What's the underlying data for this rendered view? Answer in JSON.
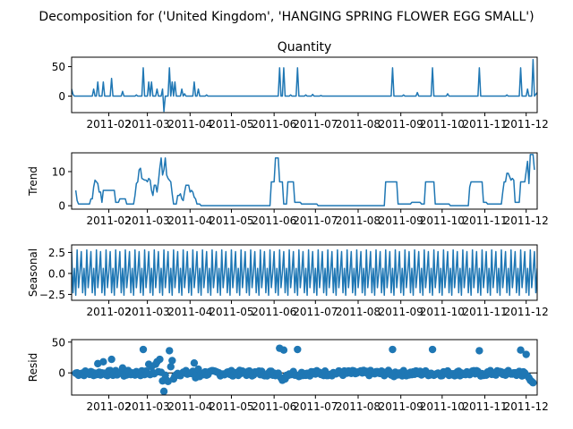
{
  "figure": {
    "suptitle": "Decomposition for ('United Kingdom', 'HANGING SPRING FLOWER EGG SMALL')",
    "title": "Quantity"
  },
  "chart_data": [
    {
      "type": "line",
      "name": "observed",
      "ylabel": "",
      "title": "Quantity",
      "ylim": [
        -28,
        66
      ],
      "yticks": [
        0,
        50
      ],
      "xlim": [
        "2011-01-05",
        "2011-12-09"
      ],
      "xticks": [
        "2011-02",
        "2011-03",
        "2011-04",
        "2011-05",
        "2011-06",
        "2011-07",
        "2011-08",
        "2011-09",
        "2011-10",
        "2011-11",
        "2011-12"
      ],
      "points": [
        [
          "2011-01-05",
          12
        ],
        [
          "2011-01-06",
          3
        ],
        [
          "2011-01-07",
          0
        ],
        [
          "2011-01-20",
          0
        ],
        [
          "2011-01-21",
          12
        ],
        [
          "2011-01-22",
          0
        ],
        [
          "2011-01-23",
          0
        ],
        [
          "2011-01-24",
          24
        ],
        [
          "2011-01-25",
          0
        ],
        [
          "2011-01-27",
          0
        ],
        [
          "2011-01-28",
          24
        ],
        [
          "2011-01-29",
          0
        ],
        [
          "2011-02-02",
          0
        ],
        [
          "2011-02-03",
          30
        ],
        [
          "2011-02-04",
          0
        ],
        [
          "2011-02-10",
          0
        ],
        [
          "2011-02-11",
          8
        ],
        [
          "2011-02-12",
          0
        ],
        [
          "2011-02-20",
          0
        ],
        [
          "2011-02-21",
          2
        ],
        [
          "2011-02-22",
          0
        ],
        [
          "2011-02-25",
          0
        ],
        [
          "2011-02-26",
          48
        ],
        [
          "2011-02-27",
          0
        ],
        [
          "2011-03-01",
          0
        ],
        [
          "2011-03-02",
          24
        ],
        [
          "2011-03-03",
          0
        ],
        [
          "2011-03-04",
          24
        ],
        [
          "2011-03-05",
          0
        ],
        [
          "2011-03-07",
          0
        ],
        [
          "2011-03-08",
          12
        ],
        [
          "2011-03-09",
          0
        ],
        [
          "2011-03-11",
          0
        ],
        [
          "2011-03-12",
          12
        ],
        [
          "2011-03-13",
          -26
        ],
        [
          "2011-03-14",
          0
        ],
        [
          "2011-03-16",
          0
        ],
        [
          "2011-03-17",
          48
        ],
        [
          "2011-03-18",
          0
        ],
        [
          "2011-03-19",
          24
        ],
        [
          "2011-03-20",
          0
        ],
        [
          "2011-03-21",
          24
        ],
        [
          "2011-03-22",
          0
        ],
        [
          "2011-03-25",
          0
        ],
        [
          "2011-03-26",
          12
        ],
        [
          "2011-03-27",
          0
        ],
        [
          "2011-03-28",
          4
        ],
        [
          "2011-03-29",
          0
        ],
        [
          "2011-04-03",
          0
        ],
        [
          "2011-04-04",
          24
        ],
        [
          "2011-04-05",
          0
        ],
        [
          "2011-04-06",
          0
        ],
        [
          "2011-04-07",
          12
        ],
        [
          "2011-04-08",
          0
        ],
        [
          "2011-04-12",
          0
        ],
        [
          "2011-04-13",
          2
        ],
        [
          "2011-04-14",
          0
        ],
        [
          "2011-06-04",
          0
        ],
        [
          "2011-06-05",
          48
        ],
        [
          "2011-06-06",
          0
        ],
        [
          "2011-06-07",
          0
        ],
        [
          "2011-06-08",
          48
        ],
        [
          "2011-06-09",
          0
        ],
        [
          "2011-06-12",
          0
        ],
        [
          "2011-06-13",
          2
        ],
        [
          "2011-06-14",
          0
        ],
        [
          "2011-06-17",
          0
        ],
        [
          "2011-06-18",
          48
        ],
        [
          "2011-06-19",
          0
        ],
        [
          "2011-06-23",
          0
        ],
        [
          "2011-06-24",
          2
        ],
        [
          "2011-06-25",
          0
        ],
        [
          "2011-06-28",
          0
        ],
        [
          "2011-06-29",
          3
        ],
        [
          "2011-06-30",
          0
        ],
        [
          "2011-07-04",
          0
        ],
        [
          "2011-07-05",
          1
        ],
        [
          "2011-07-06",
          0
        ],
        [
          "2011-08-25",
          0
        ],
        [
          "2011-08-26",
          48
        ],
        [
          "2011-08-27",
          0
        ],
        [
          "2011-09-02",
          0
        ],
        [
          "2011-09-03",
          2
        ],
        [
          "2011-09-04",
          0
        ],
        [
          "2011-09-12",
          0
        ],
        [
          "2011-09-13",
          6
        ],
        [
          "2011-09-14",
          0
        ],
        [
          "2011-09-23",
          0
        ],
        [
          "2011-09-24",
          48
        ],
        [
          "2011-09-25",
          0
        ],
        [
          "2011-10-04",
          0
        ],
        [
          "2011-10-05",
          4
        ],
        [
          "2011-10-06",
          0
        ],
        [
          "2011-10-27",
          0
        ],
        [
          "2011-10-28",
          48
        ],
        [
          "2011-10-29",
          0
        ],
        [
          "2011-11-16",
          0
        ],
        [
          "2011-11-17",
          2
        ],
        [
          "2011-11-18",
          0
        ],
        [
          "2011-11-26",
          0
        ],
        [
          "2011-11-27",
          48
        ],
        [
          "2011-11-28",
          0
        ],
        [
          "2011-12-01",
          0
        ],
        [
          "2011-12-02",
          12
        ],
        [
          "2011-12-03",
          0
        ],
        [
          "2011-12-05",
          0
        ],
        [
          "2011-12-06",
          62
        ],
        [
          "2011-12-07",
          0
        ],
        [
          "2011-12-08",
          3
        ],
        [
          "2011-12-09",
          6
        ]
      ]
    },
    {
      "type": "line",
      "name": "trend",
      "ylabel": "Trend",
      "ylim": [
        -1,
        15.5
      ],
      "yticks": [
        0,
        10
      ],
      "xlim": [
        "2011-01-05",
        "2011-12-09"
      ],
      "xticks": [
        "2011-02",
        "2011-03",
        "2011-04",
        "2011-05",
        "2011-06",
        "2011-07",
        "2011-08",
        "2011-09",
        "2011-10",
        "2011-11",
        "2011-12"
      ],
      "points": [
        [
          "2011-01-08",
          4.5
        ],
        [
          "2011-01-09",
          1.5
        ],
        [
          "2011-01-10",
          0.5
        ],
        [
          "2011-01-18",
          0.5
        ],
        [
          "2011-01-19",
          2
        ],
        [
          "2011-01-20",
          2
        ],
        [
          "2011-01-21",
          5.5
        ],
        [
          "2011-01-22",
          7.5
        ],
        [
          "2011-01-23",
          7
        ],
        [
          "2011-01-24",
          6.5
        ],
        [
          "2011-01-25",
          4
        ],
        [
          "2011-01-26",
          4
        ],
        [
          "2011-01-27",
          1
        ],
        [
          "2011-01-28",
          4.5
        ],
        [
          "2011-01-29",
          4.5
        ],
        [
          "2011-02-05",
          4.5
        ],
        [
          "2011-02-06",
          1
        ],
        [
          "2011-02-08",
          1
        ],
        [
          "2011-02-09",
          2
        ],
        [
          "2011-02-13",
          2
        ],
        [
          "2011-02-14",
          0.5
        ],
        [
          "2011-02-19",
          0.5
        ],
        [
          "2011-02-20",
          3
        ],
        [
          "2011-02-21",
          6.5
        ],
        [
          "2011-02-22",
          7
        ],
        [
          "2011-02-23",
          10.5
        ],
        [
          "2011-02-24",
          11
        ],
        [
          "2011-02-25",
          8
        ],
        [
          "2011-02-27",
          7.5
        ],
        [
          "2011-02-28",
          7.5
        ],
        [
          "2011-03-01",
          7
        ],
        [
          "2011-03-02",
          8
        ],
        [
          "2011-03-03",
          7.5
        ],
        [
          "2011-03-04",
          4.5
        ],
        [
          "2011-03-05",
          3
        ],
        [
          "2011-03-06",
          6
        ],
        [
          "2011-03-07",
          6
        ],
        [
          "2011-03-08",
          4
        ],
        [
          "2011-03-09",
          7
        ],
        [
          "2011-03-10",
          11
        ],
        [
          "2011-03-11",
          14
        ],
        [
          "2011-03-12",
          9
        ],
        [
          "2011-03-13",
          10.5
        ],
        [
          "2011-03-14",
          14
        ],
        [
          "2011-03-15",
          9
        ],
        [
          "2011-03-16",
          8
        ],
        [
          "2011-03-17",
          7.5
        ],
        [
          "2011-03-18",
          7
        ],
        [
          "2011-03-19",
          3.5
        ],
        [
          "2011-03-20",
          0.5
        ],
        [
          "2011-03-22",
          0.5
        ],
        [
          "2011-03-23",
          3
        ],
        [
          "2011-03-24",
          3
        ],
        [
          "2011-03-25",
          3.5
        ],
        [
          "2011-03-26",
          2
        ],
        [
          "2011-03-27",
          1.5
        ],
        [
          "2011-03-28",
          4
        ],
        [
          "2011-03-29",
          6
        ],
        [
          "2011-03-31",
          6
        ],
        [
          "2011-04-01",
          4
        ],
        [
          "2011-04-02",
          4.5
        ],
        [
          "2011-04-03",
          4
        ],
        [
          "2011-04-04",
          2.5
        ],
        [
          "2011-04-05",
          2
        ],
        [
          "2011-04-06",
          0.5
        ],
        [
          "2011-04-08",
          0.5
        ],
        [
          "2011-04-09",
          0
        ],
        [
          "2011-05-29",
          0
        ],
        [
          "2011-05-30",
          7
        ],
        [
          "2011-06-01",
          7
        ],
        [
          "2011-06-02",
          14
        ],
        [
          "2011-06-04",
          14
        ],
        [
          "2011-06-05",
          7
        ],
        [
          "2011-06-07",
          7
        ],
        [
          "2011-06-08",
          0.5
        ],
        [
          "2011-06-10",
          0.5
        ],
        [
          "2011-06-11",
          7
        ],
        [
          "2011-06-15",
          7
        ],
        [
          "2011-06-16",
          1
        ],
        [
          "2011-06-20",
          1
        ],
        [
          "2011-06-21",
          0.5
        ],
        [
          "2011-07-02",
          0.5
        ],
        [
          "2011-07-03",
          0
        ],
        [
          "2011-08-20",
          0
        ],
        [
          "2011-08-21",
          7
        ],
        [
          "2011-08-29",
          7
        ],
        [
          "2011-08-30",
          0.5
        ],
        [
          "2011-09-08",
          0.5
        ],
        [
          "2011-09-09",
          1
        ],
        [
          "2011-09-15",
          1
        ],
        [
          "2011-09-16",
          0.5
        ],
        [
          "2011-09-18",
          0.5
        ],
        [
          "2011-09-19",
          7
        ],
        [
          "2011-09-25",
          7
        ],
        [
          "2011-09-26",
          0.5
        ],
        [
          "2011-10-06",
          0.5
        ],
        [
          "2011-10-07",
          0
        ],
        [
          "2011-10-20",
          0
        ],
        [
          "2011-10-21",
          5.5
        ],
        [
          "2011-10-22",
          7
        ],
        [
          "2011-10-30",
          7
        ],
        [
          "2011-10-31",
          1
        ],
        [
          "2011-11-02",
          1
        ],
        [
          "2011-11-03",
          0.5
        ],
        [
          "2011-11-13",
          0.5
        ],
        [
          "2011-11-14",
          4
        ],
        [
          "2011-11-15",
          7
        ],
        [
          "2011-11-16",
          7
        ],
        [
          "2011-11-17",
          9.5
        ],
        [
          "2011-11-18",
          9.5
        ],
        [
          "2011-11-20",
          7.5
        ],
        [
          "2011-11-21",
          8
        ],
        [
          "2011-11-22",
          7.5
        ],
        [
          "2011-11-23",
          1
        ],
        [
          "2011-11-26",
          1
        ],
        [
          "2011-11-27",
          7
        ],
        [
          "2011-11-30",
          7
        ],
        [
          "2011-12-01",
          10
        ],
        [
          "2011-12-02",
          13
        ],
        [
          "2011-12-03",
          6.5
        ],
        [
          "2011-12-04",
          15
        ],
        [
          "2011-12-06",
          15
        ],
        [
          "2011-12-07",
          10.5
        ]
      ]
    },
    {
      "type": "line",
      "name": "seasonal",
      "ylabel": "Seasonal",
      "ylim": [
        -3.2,
        3.4
      ],
      "yticks": [
        -2.5,
        0.0,
        2.5
      ],
      "ytick_labels": [
        "−2.5",
        "0.0",
        "2.5"
      ],
      "xlim": [
        "2011-01-05",
        "2011-12-09"
      ],
      "xticks": [
        "2011-02",
        "2011-03",
        "2011-04",
        "2011-05",
        "2011-06",
        "2011-07",
        "2011-08",
        "2011-09",
        "2011-10",
        "2011-11",
        "2011-12"
      ],
      "period_days": 7,
      "weekly_pattern": [
        2.6,
        -2.3,
        0.6,
        -2.6,
        2.8,
        -1.7,
        0.1
      ]
    },
    {
      "type": "scatter",
      "name": "resid",
      "ylabel": "Resid",
      "ylim": [
        -36,
        54
      ],
      "yticks": [
        0,
        50
      ],
      "xlim": [
        "2011-01-05",
        "2011-12-09"
      ],
      "xticks": [
        "2011-02",
        "2011-03",
        "2011-04",
        "2011-05",
        "2011-06",
        "2011-07",
        "2011-08",
        "2011-09",
        "2011-10",
        "2011-11",
        "2011-12"
      ],
      "baseline": 0,
      "points": [
        [
          "2011-01-24",
          15
        ],
        [
          "2011-01-28",
          18
        ],
        [
          "2011-02-03",
          22
        ],
        [
          "2011-02-11",
          8
        ],
        [
          "2011-02-12",
          -5
        ],
        [
          "2011-02-26",
          38
        ],
        [
          "2011-03-02",
          14
        ],
        [
          "2011-03-04",
          10
        ],
        [
          "2011-03-07",
          14
        ],
        [
          "2011-03-08",
          18
        ],
        [
          "2011-03-10",
          22
        ],
        [
          "2011-03-12",
          -13
        ],
        [
          "2011-03-13",
          -30
        ],
        [
          "2011-03-15",
          -12
        ],
        [
          "2011-03-16",
          -14
        ],
        [
          "2011-03-17",
          36
        ],
        [
          "2011-03-18",
          10
        ],
        [
          "2011-03-19",
          20
        ],
        [
          "2011-03-20",
          -10
        ],
        [
          "2011-03-21",
          -5
        ],
        [
          "2011-04-04",
          16
        ],
        [
          "2011-04-05",
          -8
        ],
        [
          "2011-04-07",
          6
        ],
        [
          "2011-04-08",
          -6
        ],
        [
          "2011-06-05",
          40
        ],
        [
          "2011-06-06",
          -8
        ],
        [
          "2011-06-07",
          -12
        ],
        [
          "2011-06-08",
          37
        ],
        [
          "2011-06-09",
          -10
        ],
        [
          "2011-06-10",
          -4
        ],
        [
          "2011-06-18",
          38
        ],
        [
          "2011-06-19",
          -6
        ],
        [
          "2011-08-26",
          38
        ],
        [
          "2011-08-27",
          -6
        ],
        [
          "2011-09-24",
          38
        ],
        [
          "2011-09-25",
          -4
        ],
        [
          "2011-10-28",
          36
        ],
        [
          "2011-10-29",
          -5
        ],
        [
          "2011-11-27",
          37
        ],
        [
          "2011-11-28",
          -5
        ],
        [
          "2011-12-01",
          30
        ],
        [
          "2011-12-02",
          -5
        ],
        [
          "2011-12-03",
          -8
        ],
        [
          "2011-12-04",
          -12
        ],
        [
          "2011-12-05",
          -14
        ],
        [
          "2011-12-06",
          -16
        ],
        [
          "2011-12-07",
          -12
        ],
        [
          "2011-12-08",
          46
        ]
      ],
      "noise_range": [
        -5,
        4
      ]
    }
  ]
}
